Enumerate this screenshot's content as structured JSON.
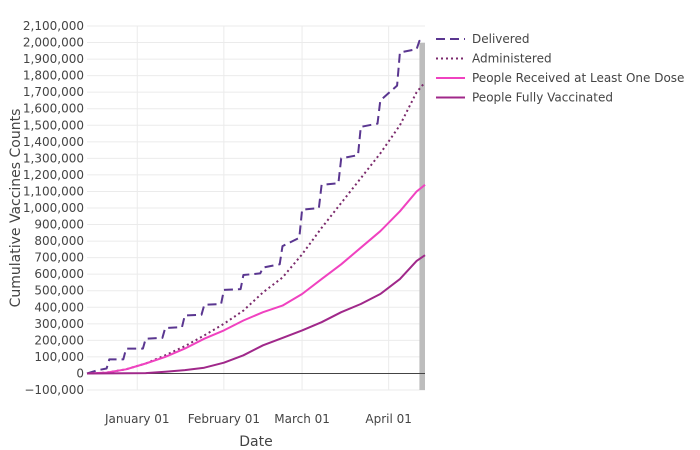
{
  "chart_data": {
    "type": "line",
    "xlabel": "Date",
    "ylabel": "Cumulative Vaccines Counts",
    "x_start": "2020-12-14",
    "x_end": "2021-04-14",
    "ylim": [
      -100000,
      2100000
    ],
    "ytick_step": 100000,
    "xticks": [
      {
        "date": "2021-01-01",
        "label": "January 01"
      },
      {
        "date": "2021-02-01",
        "label": "February 01"
      },
      {
        "date": "2021-03-01",
        "label": "March 01"
      },
      {
        "date": "2021-04-01",
        "label": "April 01"
      }
    ],
    "shaded_region": {
      "start": "2021-04-12",
      "end": "2021-04-14",
      "color": "#bdbdbd"
    },
    "grid": true,
    "legend_position": "top-right",
    "series": [
      {
        "name": "Delivered",
        "color": "#5a3690",
        "dash": "dash",
        "points": [
          [
            "2020-12-14",
            0
          ],
          [
            "2020-12-18",
            20000
          ],
          [
            "2020-12-21",
            30000
          ],
          [
            "2020-12-22",
            85000
          ],
          [
            "2020-12-27",
            85000
          ],
          [
            "2020-12-28",
            150000
          ],
          [
            "2021-01-03",
            150000
          ],
          [
            "2021-01-04",
            210000
          ],
          [
            "2021-01-10",
            215000
          ],
          [
            "2021-01-11",
            275000
          ],
          [
            "2021-01-17",
            280000
          ],
          [
            "2021-01-18",
            350000
          ],
          [
            "2021-01-24",
            355000
          ],
          [
            "2021-01-25",
            415000
          ],
          [
            "2021-01-31",
            420000
          ],
          [
            "2021-02-01",
            505000
          ],
          [
            "2021-02-07",
            510000
          ],
          [
            "2021-02-08",
            595000
          ],
          [
            "2021-02-14",
            605000
          ],
          [
            "2021-02-15",
            640000
          ],
          [
            "2021-02-21",
            660000
          ],
          [
            "2021-02-22",
            770000
          ],
          [
            "2021-02-28",
            820000
          ],
          [
            "2021-03-01",
            990000
          ],
          [
            "2021-03-07",
            1000000
          ],
          [
            "2021-03-08",
            1140000
          ],
          [
            "2021-03-14",
            1150000
          ],
          [
            "2021-03-15",
            1300000
          ],
          [
            "2021-03-21",
            1320000
          ],
          [
            "2021-03-22",
            1490000
          ],
          [
            "2021-03-28",
            1510000
          ],
          [
            "2021-03-29",
            1650000
          ],
          [
            "2021-04-04",
            1740000
          ],
          [
            "2021-04-05",
            1940000
          ],
          [
            "2021-04-11",
            1960000
          ],
          [
            "2021-04-12",
            2010000
          ],
          [
            "2021-04-14",
            2010000
          ]
        ]
      },
      {
        "name": "Administered",
        "color": "#7b2a6c",
        "dash": "dot",
        "points": [
          [
            "2020-12-14",
            0
          ],
          [
            "2020-12-21",
            5000
          ],
          [
            "2020-12-28",
            25000
          ],
          [
            "2021-01-04",
            60000
          ],
          [
            "2021-01-11",
            110000
          ],
          [
            "2021-01-18",
            165000
          ],
          [
            "2021-01-25",
            230000
          ],
          [
            "2021-02-01",
            300000
          ],
          [
            "2021-02-08",
            380000
          ],
          [
            "2021-02-15",
            490000
          ],
          [
            "2021-02-22",
            580000
          ],
          [
            "2021-03-01",
            720000
          ],
          [
            "2021-03-08",
            880000
          ],
          [
            "2021-03-15",
            1030000
          ],
          [
            "2021-03-22",
            1180000
          ],
          [
            "2021-03-29",
            1330000
          ],
          [
            "2021-04-05",
            1500000
          ],
          [
            "2021-04-11",
            1700000
          ],
          [
            "2021-04-14",
            1760000
          ]
        ]
      },
      {
        "name": "People Received at Least One Dose",
        "color": "#f042c0",
        "dash": "solid",
        "points": [
          [
            "2020-12-14",
            0
          ],
          [
            "2020-12-21",
            5000
          ],
          [
            "2020-12-28",
            25000
          ],
          [
            "2021-01-04",
            60000
          ],
          [
            "2021-01-11",
            100000
          ],
          [
            "2021-01-18",
            150000
          ],
          [
            "2021-01-25",
            210000
          ],
          [
            "2021-02-01",
            260000
          ],
          [
            "2021-02-08",
            320000
          ],
          [
            "2021-02-15",
            370000
          ],
          [
            "2021-02-22",
            410000
          ],
          [
            "2021-03-01",
            480000
          ],
          [
            "2021-03-08",
            570000
          ],
          [
            "2021-03-15",
            660000
          ],
          [
            "2021-03-22",
            760000
          ],
          [
            "2021-03-29",
            860000
          ],
          [
            "2021-04-05",
            980000
          ],
          [
            "2021-04-11",
            1100000
          ],
          [
            "2021-04-14",
            1140000
          ]
        ]
      },
      {
        "name": "People Fully Vaccinated",
        "color": "#a0288a",
        "dash": "solid",
        "points": [
          [
            "2020-12-14",
            0
          ],
          [
            "2021-01-04",
            2000
          ],
          [
            "2021-01-11",
            10000
          ],
          [
            "2021-01-18",
            20000
          ],
          [
            "2021-01-25",
            35000
          ],
          [
            "2021-02-01",
            65000
          ],
          [
            "2021-02-08",
            110000
          ],
          [
            "2021-02-15",
            170000
          ],
          [
            "2021-02-22",
            215000
          ],
          [
            "2021-03-01",
            260000
          ],
          [
            "2021-03-08",
            310000
          ],
          [
            "2021-03-15",
            370000
          ],
          [
            "2021-03-22",
            420000
          ],
          [
            "2021-03-29",
            480000
          ],
          [
            "2021-04-05",
            570000
          ],
          [
            "2021-04-11",
            680000
          ],
          [
            "2021-04-14",
            715000
          ]
        ]
      }
    ]
  }
}
